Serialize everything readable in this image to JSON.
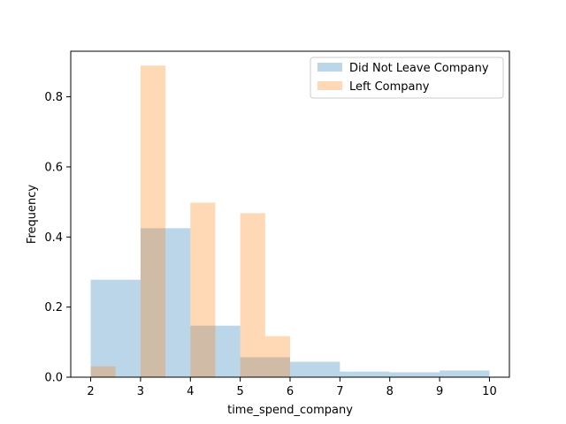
{
  "chart_data": {
    "type": "bar",
    "xlabel": "time_spend_company",
    "ylabel": "Frequency",
    "xlim": [
      1.6,
      10.4
    ],
    "ylim": [
      0,
      0.93
    ],
    "xticks": [
      2,
      3,
      4,
      5,
      6,
      7,
      8,
      9,
      10
    ],
    "yticks": [
      0.0,
      0.2,
      0.4,
      0.6,
      0.8
    ],
    "ytick_labels": [
      "0.0",
      "0.2",
      "0.4",
      "0.6",
      "0.8"
    ],
    "legend_position": "top-right",
    "series": [
      {
        "name": "Did Not Leave Company",
        "color": "#1f77b4",
        "opacity": 0.3,
        "bins": [
          {
            "x0": 2,
            "x1": 3,
            "value": 0.278
          },
          {
            "x0": 3,
            "x1": 4,
            "value": 0.425
          },
          {
            "x0": 4,
            "x1": 5,
            "value": 0.147
          },
          {
            "x0": 5,
            "x1": 6,
            "value": 0.057
          },
          {
            "x0": 6,
            "x1": 7,
            "value": 0.044
          },
          {
            "x0": 7,
            "x1": 8,
            "value": 0.016
          },
          {
            "x0": 8,
            "x1": 9,
            "value": 0.014
          },
          {
            "x0": 9,
            "x1": 10,
            "value": 0.019
          }
        ]
      },
      {
        "name": "Left Company",
        "color": "#ff7f0e",
        "opacity": 0.3,
        "bins": [
          {
            "x0": 2.0,
            "x1": 2.5,
            "value": 0.031
          },
          {
            "x0": 2.5,
            "x1": 3.0,
            "value": 0.0
          },
          {
            "x0": 3.0,
            "x1": 3.5,
            "value": 0.889
          },
          {
            "x0": 3.5,
            "x1": 4.0,
            "value": 0.0
          },
          {
            "x0": 4.0,
            "x1": 4.5,
            "value": 0.498
          },
          {
            "x0": 4.5,
            "x1": 5.0,
            "value": 0.0
          },
          {
            "x0": 5.0,
            "x1": 5.5,
            "value": 0.468
          },
          {
            "x0": 5.5,
            "x1": 6.0,
            "value": 0.117
          }
        ]
      }
    ]
  }
}
